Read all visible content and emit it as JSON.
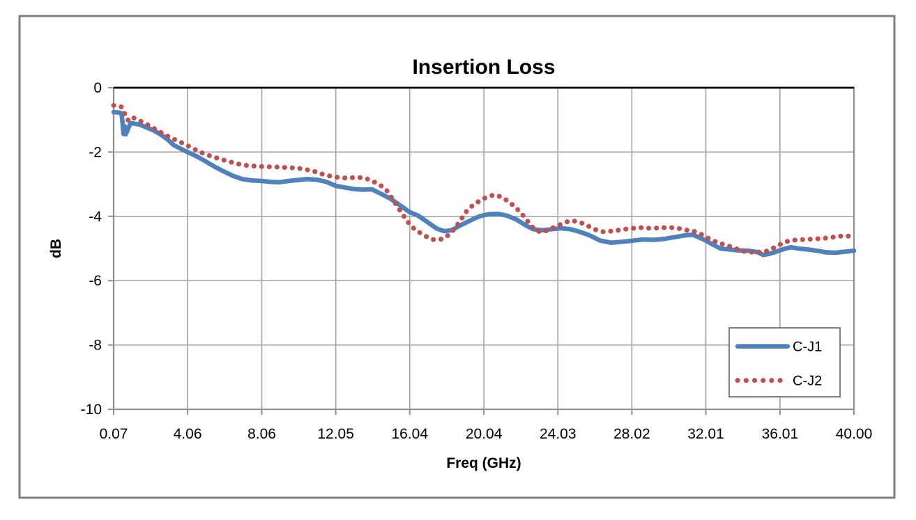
{
  "chart_data": {
    "type": "line",
    "title": "Insertion Loss",
    "xlabel": "Freq (GHz)",
    "ylabel": "dB",
    "xlim": [
      0.07,
      40.0
    ],
    "ylim": [
      -10,
      0
    ],
    "grid": true,
    "legend_position": "inside-right",
    "x_ticks": [
      0.07,
      4.06,
      8.06,
      12.05,
      16.04,
      20.04,
      24.03,
      28.02,
      32.01,
      36.01,
      40.0
    ],
    "x_tick_labels": [
      "0.07",
      "4.06",
      "8.06",
      "12.05",
      "16.04",
      "20.04",
      "24.03",
      "28.02",
      "32.01",
      "36.01",
      "40.00"
    ],
    "y_ticks": [
      0,
      -2,
      -4,
      -6,
      -8,
      -10
    ],
    "y_tick_labels": [
      "0",
      "-2",
      "-4",
      "-6",
      "-8",
      "-10"
    ],
    "colors": {
      "series_c_j1": "#4F81BD",
      "series_c_j2": "#C0504D",
      "gridline": "#A6A6A6",
      "plot_border": "#8F8F8F",
      "zero_axis": "#000000",
      "outer_border": "#7F7F7F",
      "text": "#000000",
      "background": "#FFFFFF"
    },
    "series": [
      {
        "name": "C-J1",
        "style": "solid",
        "color": "#4F81BD",
        "points": [
          [
            0.07,
            -0.76
          ],
          [
            0.35,
            -0.77
          ],
          [
            0.5,
            -0.8
          ],
          [
            0.55,
            -1.1
          ],
          [
            0.6,
            -1.44
          ],
          [
            0.66,
            -1.2
          ],
          [
            0.72,
            -1.45
          ],
          [
            0.8,
            -1.35
          ],
          [
            0.9,
            -1.2
          ],
          [
            1.0,
            -1.1
          ],
          [
            1.5,
            -1.15
          ],
          [
            1.9,
            -1.25
          ],
          [
            2.2,
            -1.32
          ],
          [
            2.6,
            -1.45
          ],
          [
            3.0,
            -1.62
          ],
          [
            3.3,
            -1.78
          ],
          [
            3.7,
            -1.9
          ],
          [
            4.06,
            -2.0
          ],
          [
            4.5,
            -2.12
          ],
          [
            5.0,
            -2.28
          ],
          [
            5.5,
            -2.45
          ],
          [
            6.0,
            -2.6
          ],
          [
            6.5,
            -2.74
          ],
          [
            7.0,
            -2.84
          ],
          [
            7.5,
            -2.88
          ],
          [
            8.06,
            -2.9
          ],
          [
            8.6,
            -2.93
          ],
          [
            9.0,
            -2.94
          ],
          [
            9.5,
            -2.9
          ],
          [
            10.0,
            -2.87
          ],
          [
            10.5,
            -2.84
          ],
          [
            11.0,
            -2.86
          ],
          [
            11.5,
            -2.92
          ],
          [
            12.05,
            -3.05
          ],
          [
            12.5,
            -3.1
          ],
          [
            13.0,
            -3.15
          ],
          [
            13.5,
            -3.17
          ],
          [
            14.0,
            -3.16
          ],
          [
            14.5,
            -3.3
          ],
          [
            15.0,
            -3.45
          ],
          [
            15.5,
            -3.65
          ],
          [
            16.04,
            -3.87
          ],
          [
            16.5,
            -3.98
          ],
          [
            17.0,
            -4.18
          ],
          [
            17.5,
            -4.38
          ],
          [
            17.9,
            -4.46
          ],
          [
            18.3,
            -4.43
          ],
          [
            18.8,
            -4.27
          ],
          [
            19.3,
            -4.13
          ],
          [
            19.8,
            -4.0
          ],
          [
            20.3,
            -3.93
          ],
          [
            20.8,
            -3.92
          ],
          [
            21.3,
            -3.98
          ],
          [
            21.8,
            -4.1
          ],
          [
            22.3,
            -4.28
          ],
          [
            22.7,
            -4.4
          ],
          [
            23.2,
            -4.43
          ],
          [
            23.7,
            -4.4
          ],
          [
            24.2,
            -4.37
          ],
          [
            24.7,
            -4.4
          ],
          [
            25.2,
            -4.48
          ],
          [
            25.7,
            -4.58
          ],
          [
            26.3,
            -4.75
          ],
          [
            26.9,
            -4.82
          ],
          [
            27.5,
            -4.79
          ],
          [
            28.0,
            -4.76
          ],
          [
            28.6,
            -4.72
          ],
          [
            29.2,
            -4.73
          ],
          [
            29.8,
            -4.7
          ],
          [
            30.3,
            -4.65
          ],
          [
            30.9,
            -4.59
          ],
          [
            31.3,
            -4.57
          ],
          [
            31.9,
            -4.72
          ],
          [
            32.4,
            -4.88
          ],
          [
            32.8,
            -5.0
          ],
          [
            33.3,
            -5.03
          ],
          [
            33.8,
            -5.06
          ],
          [
            34.3,
            -5.07
          ],
          [
            34.8,
            -5.11
          ],
          [
            35.1,
            -5.2
          ],
          [
            35.4,
            -5.17
          ],
          [
            35.8,
            -5.1
          ],
          [
            36.2,
            -5.02
          ],
          [
            36.6,
            -4.96
          ],
          [
            37.0,
            -5.0
          ],
          [
            37.5,
            -5.03
          ],
          [
            38.0,
            -5.07
          ],
          [
            38.5,
            -5.12
          ],
          [
            39.0,
            -5.13
          ],
          [
            39.5,
            -5.1
          ],
          [
            40.0,
            -5.07
          ]
        ]
      },
      {
        "name": "C-J2",
        "style": "dotted",
        "color": "#C0504D",
        "points": [
          [
            0.07,
            -0.55
          ],
          [
            0.3,
            -0.57
          ],
          [
            0.5,
            -0.6
          ],
          [
            0.65,
            -0.78
          ],
          [
            0.8,
            -1.0
          ],
          [
            0.95,
            -1.02
          ],
          [
            1.1,
            -0.92
          ],
          [
            1.35,
            -1.0
          ],
          [
            1.6,
            -1.06
          ],
          [
            2.0,
            -1.18
          ],
          [
            2.4,
            -1.32
          ],
          [
            2.8,
            -1.45
          ],
          [
            3.2,
            -1.57
          ],
          [
            3.6,
            -1.67
          ],
          [
            4.06,
            -1.8
          ],
          [
            4.5,
            -1.93
          ],
          [
            5.0,
            -2.07
          ],
          [
            5.5,
            -2.16
          ],
          [
            6.0,
            -2.25
          ],
          [
            6.5,
            -2.33
          ],
          [
            7.0,
            -2.4
          ],
          [
            7.5,
            -2.43
          ],
          [
            8.06,
            -2.45
          ],
          [
            9.0,
            -2.47
          ],
          [
            10.0,
            -2.5
          ],
          [
            10.5,
            -2.55
          ],
          [
            11.0,
            -2.62
          ],
          [
            11.5,
            -2.72
          ],
          [
            12.05,
            -2.78
          ],
          [
            12.6,
            -2.81
          ],
          [
            13.1,
            -2.79
          ],
          [
            13.6,
            -2.8
          ],
          [
            14.0,
            -2.9
          ],
          [
            14.4,
            -3.0
          ],
          [
            14.8,
            -3.2
          ],
          [
            15.1,
            -3.45
          ],
          [
            15.5,
            -3.8
          ],
          [
            15.9,
            -4.15
          ],
          [
            16.3,
            -4.4
          ],
          [
            16.7,
            -4.55
          ],
          [
            17.0,
            -4.65
          ],
          [
            17.3,
            -4.72
          ],
          [
            17.6,
            -4.73
          ],
          [
            17.9,
            -4.68
          ],
          [
            18.2,
            -4.55
          ],
          [
            18.5,
            -4.35
          ],
          [
            18.8,
            -4.1
          ],
          [
            19.1,
            -3.85
          ],
          [
            19.4,
            -3.68
          ],
          [
            19.8,
            -3.52
          ],
          [
            20.2,
            -3.4
          ],
          [
            20.6,
            -3.33
          ],
          [
            21.0,
            -3.4
          ],
          [
            21.4,
            -3.55
          ],
          [
            21.8,
            -3.75
          ],
          [
            22.2,
            -4.0
          ],
          [
            22.6,
            -4.3
          ],
          [
            22.9,
            -4.45
          ],
          [
            23.2,
            -4.5
          ],
          [
            23.5,
            -4.42
          ],
          [
            23.9,
            -4.32
          ],
          [
            24.3,
            -4.22
          ],
          [
            24.7,
            -4.13
          ],
          [
            25.1,
            -4.16
          ],
          [
            25.5,
            -4.25
          ],
          [
            26.0,
            -4.4
          ],
          [
            26.4,
            -4.48
          ],
          [
            26.9,
            -4.46
          ],
          [
            27.4,
            -4.42
          ],
          [
            27.9,
            -4.38
          ],
          [
            28.5,
            -4.35
          ],
          [
            29.0,
            -4.37
          ],
          [
            29.6,
            -4.36
          ],
          [
            30.0,
            -4.34
          ],
          [
            30.5,
            -4.37
          ],
          [
            31.0,
            -4.43
          ],
          [
            31.4,
            -4.47
          ],
          [
            31.8,
            -4.57
          ],
          [
            32.2,
            -4.7
          ],
          [
            32.6,
            -4.8
          ],
          [
            33.0,
            -4.88
          ],
          [
            33.4,
            -4.95
          ],
          [
            33.9,
            -5.06
          ],
          [
            34.3,
            -5.12
          ],
          [
            34.7,
            -5.1
          ],
          [
            35.1,
            -5.13
          ],
          [
            35.6,
            -5.0
          ],
          [
            36.0,
            -4.88
          ],
          [
            36.4,
            -4.78
          ],
          [
            36.9,
            -4.73
          ],
          [
            37.4,
            -4.72
          ],
          [
            37.9,
            -4.7
          ],
          [
            38.3,
            -4.69
          ],
          [
            38.7,
            -4.66
          ],
          [
            39.1,
            -4.63
          ],
          [
            39.5,
            -4.6
          ],
          [
            40.0,
            -4.64
          ]
        ]
      }
    ]
  }
}
